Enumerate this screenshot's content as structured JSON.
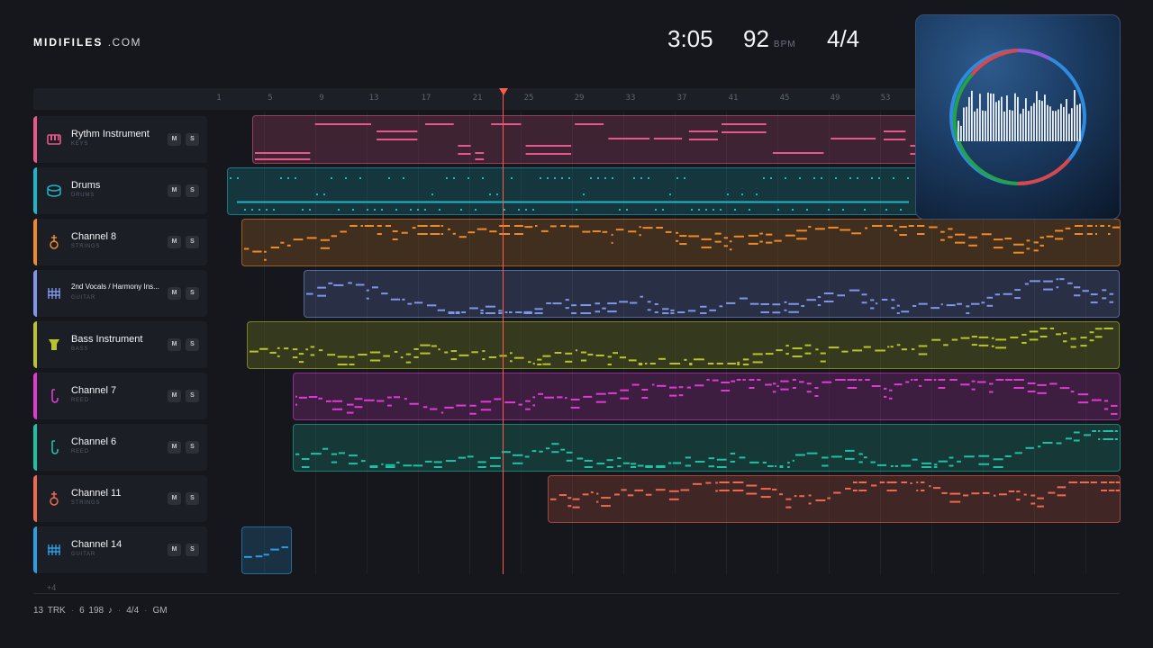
{
  "brand": {
    "name": "MIDIFILES",
    "suffix": ".COM"
  },
  "header": {
    "time": "3:05",
    "tempo": "92",
    "tempo_unit": "BPM",
    "signature": "4/4"
  },
  "ruler": {
    "ticks": [
      "1",
      "5",
      "9",
      "13",
      "17",
      "21",
      "25",
      "29",
      "33",
      "37",
      "41",
      "45",
      "49",
      "53"
    ]
  },
  "tracks": [
    {
      "name": "Rythm Instrument",
      "type": "KEYS",
      "color": "#e8578a",
      "icon": "piano-icon",
      "mute": "M",
      "solo": "S"
    },
    {
      "name": "Drums",
      "type": "DRUMS",
      "color": "#1fb5c8",
      "icon": "drum-icon",
      "mute": "M",
      "solo": "S"
    },
    {
      "name": "Channel 8",
      "type": "STRINGS",
      "color": "#ee8a2a",
      "icon": "violin-icon",
      "mute": "M",
      "solo": "S"
    },
    {
      "name": "2nd Vocals / Harmony Ins...",
      "type": "GUITAR",
      "color": "#7f95ea",
      "icon": "guitar-grid-icon",
      "mute": "M",
      "solo": "S"
    },
    {
      "name": "Bass Instrument",
      "type": "BASS",
      "color": "#b8c42a",
      "icon": "bass-icon",
      "mute": "M",
      "solo": "S"
    },
    {
      "name": "Channel 7",
      "type": "REED",
      "color": "#e03ad4",
      "icon": "reed-icon",
      "mute": "M",
      "solo": "S"
    },
    {
      "name": "Channel 6",
      "type": "REED",
      "color": "#1ec1a6",
      "icon": "reed-icon",
      "mute": "M",
      "solo": "S"
    },
    {
      "name": "Channel 11",
      "type": "STRINGS",
      "color": "#f0684e",
      "icon": "violin-icon",
      "mute": "M",
      "solo": "S"
    },
    {
      "name": "Channel 14",
      "type": "GUITAR",
      "color": "#2b9de2",
      "icon": "guitar-grid-icon",
      "mute": "M",
      "solo": "S"
    }
  ],
  "more_tracks": "+4",
  "status": {
    "tracks": "13 TRK",
    "notes": "6 198 ♪",
    "signature": "4/4",
    "standard": "GM"
  }
}
